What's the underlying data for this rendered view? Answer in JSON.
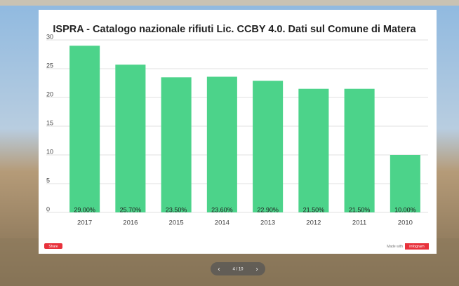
{
  "chart_data": {
    "type": "bar",
    "title": "ISPRA - Catalogo nazionale rifiuti Lic. CCBY 4.0. Dati sul Comune di Matera",
    "categories": [
      "2017",
      "2016",
      "2015",
      "2014",
      "2013",
      "2012",
      "2011",
      "2010"
    ],
    "values": [
      29,
      25.7,
      23.5,
      23.6,
      22.9,
      21.5,
      21.5,
      10
    ],
    "value_labels": [
      "29.00%",
      "25.70%",
      "23.50%",
      "23.60%",
      "22.90%",
      "21.50%",
      "21.50%",
      "10.00%"
    ],
    "color": "#4cd38a",
    "ylim": [
      0,
      30
    ],
    "yticks": [
      0,
      5,
      10,
      15,
      20,
      25,
      30
    ],
    "grid": true
  },
  "ui": {
    "share": "Share",
    "made_with": "Made with",
    "brand": "infogram",
    "pager": "4 / 10"
  }
}
